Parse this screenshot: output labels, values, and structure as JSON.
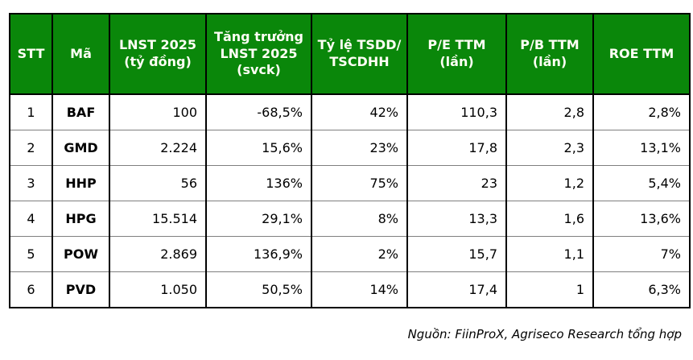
{
  "colors": {
    "header_bg": "#0a870a",
    "header_text": "#fffff5",
    "grid_dark": "#000000",
    "grid_light": "#7f7f7f"
  },
  "table": {
    "headers": [
      "STT",
      "Mã",
      "LNST 2025\n(tỷ đồng)",
      "Tăng trưởng\nLNST 2025\n(svck)",
      "Tỷ lệ TSDD/\nTSCDHH",
      "P/E TTM\n(lần)",
      "P/B TTM\n(lần)",
      "ROE TTM"
    ],
    "rows": [
      [
        "1",
        "BAF",
        "100",
        "-68,5%",
        "42%",
        "110,3",
        "2,8",
        "2,8%"
      ],
      [
        "2",
        "GMD",
        "2.224",
        "15,6%",
        "23%",
        "17,8",
        "2,3",
        "13,1%"
      ],
      [
        "3",
        "HHP",
        "56",
        "136%",
        "75%",
        "23",
        "1,2",
        "5,4%"
      ],
      [
        "4",
        "HPG",
        "15.514",
        "29,1%",
        "8%",
        "13,3",
        "1,6",
        "13,6%"
      ],
      [
        "5",
        "POW",
        "2.869",
        "136,9%",
        "2%",
        "15,7",
        "1,1",
        "7%"
      ],
      [
        "6",
        "PVD",
        "1.050",
        "50,5%",
        "14%",
        "17,4",
        "1",
        "6,3%"
      ]
    ]
  },
  "footer": {
    "source_note": "Nguồn: FiinProX, Agriseco Research tổng hợp"
  }
}
